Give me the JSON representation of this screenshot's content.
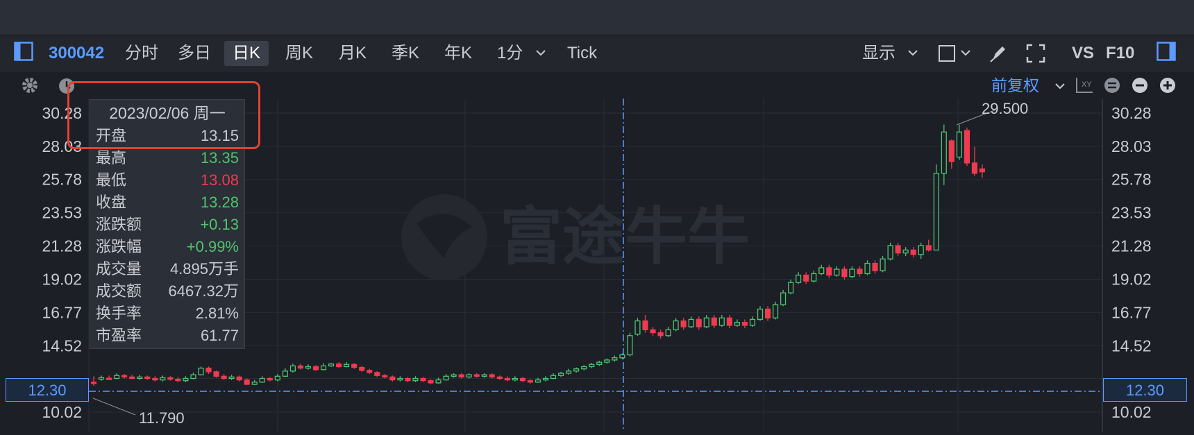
{
  "toolbar": {
    "code": "300042",
    "tabs": [
      "分时",
      "多日",
      "日K",
      "周K",
      "月K",
      "季K",
      "年K"
    ],
    "active_tab": "日K",
    "interval": "1分",
    "tick": "Tick",
    "display": "显示",
    "vs": "VS",
    "f10": "F10"
  },
  "subbar": {
    "adjust": "前复权"
  },
  "tooltip": {
    "date": "2023/02/06 周一",
    "rows": [
      {
        "label": "开盘",
        "value": "13.15",
        "color": "#c9ccd2"
      },
      {
        "label": "最高",
        "value": "13.35",
        "color": "#4fc46f"
      },
      {
        "label": "最低",
        "value": "13.08",
        "color": "#ef3b50"
      },
      {
        "label": "收盘",
        "value": "13.28",
        "color": "#4fc46f"
      },
      {
        "label": "涨跌额",
        "value": "+0.13",
        "color": "#4fc46f"
      },
      {
        "label": "涨跌幅",
        "value": "+0.99%",
        "color": "#4fc46f"
      },
      {
        "label": "成交量",
        "value": "4.895万手",
        "color": "#c9ccd2"
      },
      {
        "label": "成交额",
        "value": "6467.32万",
        "color": "#c9ccd2"
      },
      {
        "label": "换手率",
        "value": "2.81%",
        "color": "#c9ccd2"
      },
      {
        "label": "市盈率",
        "value": "61.77",
        "color": "#c9ccd2"
      }
    ]
  },
  "watermark": "富途牛牛",
  "colors": {
    "up": "#4fc46f",
    "down": "#ef3b50",
    "accent": "#5b9bff",
    "highlight": "#e0432e"
  },
  "chart_data": {
    "type": "candlestick",
    "y_ticks": [
      "30.28",
      "28.03",
      "25.78",
      "23.53",
      "21.28",
      "19.02",
      "16.77",
      "14.52",
      "12.30",
      "10.02"
    ],
    "ylim": [
      10.02,
      30.28
    ],
    "current_price": "12.30",
    "max_label": "29.500",
    "min_label": "11.790",
    "candles": [
      [
        12.05,
        12.0,
        12.45,
        11.79
      ],
      [
        12.25,
        12.35,
        12.5,
        12.15
      ],
      [
        12.32,
        12.3,
        12.5,
        12.2
      ],
      [
        12.3,
        12.5,
        12.65,
        12.25
      ],
      [
        12.5,
        12.4,
        12.6,
        12.3
      ],
      [
        12.4,
        12.3,
        12.55,
        12.25
      ],
      [
        12.3,
        12.4,
        12.55,
        12.2
      ],
      [
        12.4,
        12.3,
        12.5,
        12.2
      ],
      [
        12.3,
        12.2,
        12.45,
        12.1
      ],
      [
        12.2,
        12.35,
        12.5,
        12.1
      ],
      [
        12.35,
        12.25,
        12.45,
        12.15
      ],
      [
        12.25,
        12.15,
        12.4,
        12.05
      ],
      [
        12.15,
        12.3,
        12.45,
        12.05
      ],
      [
        12.3,
        12.55,
        12.7,
        12.25
      ],
      [
        12.55,
        13.0,
        13.1,
        12.5
      ],
      [
        13.0,
        12.75,
        13.1,
        12.6
      ],
      [
        12.75,
        12.45,
        12.85,
        12.35
      ],
      [
        12.45,
        12.3,
        12.6,
        12.2
      ],
      [
        12.3,
        12.4,
        12.55,
        12.2
      ],
      [
        12.4,
        12.2,
        12.5,
        12.1
      ],
      [
        12.2,
        11.9,
        12.3,
        11.85
      ],
      [
        11.9,
        12.05,
        12.2,
        11.85
      ],
      [
        12.05,
        12.3,
        12.45,
        12.0
      ],
      [
        12.3,
        12.2,
        12.4,
        12.1
      ],
      [
        12.2,
        12.45,
        12.6,
        12.1
      ],
      [
        12.45,
        12.8,
        13.0,
        12.4
      ],
      [
        12.8,
        13.15,
        13.3,
        12.7
      ],
      [
        13.15,
        13.0,
        13.3,
        12.9
      ],
      [
        13.0,
        13.1,
        13.25,
        12.9
      ],
      [
        13.1,
        12.9,
        13.2,
        12.8
      ],
      [
        12.9,
        13.15,
        13.35,
        12.85
      ],
      [
        13.15,
        13.28,
        13.35,
        13.08
      ],
      [
        13.28,
        13.1,
        13.4,
        13.0
      ],
      [
        13.1,
        13.25,
        13.4,
        13.05
      ],
      [
        13.25,
        13.05,
        13.35,
        12.95
      ],
      [
        13.05,
        12.85,
        13.15,
        12.75
      ],
      [
        12.85,
        12.7,
        12.95,
        12.6
      ],
      [
        12.7,
        12.5,
        12.8,
        12.4
      ],
      [
        12.5,
        12.4,
        12.6,
        12.3
      ],
      [
        12.4,
        12.2,
        12.5,
        12.1
      ],
      [
        12.2,
        12.3,
        12.45,
        12.1
      ],
      [
        12.3,
        12.15,
        12.4,
        12.05
      ],
      [
        12.15,
        12.3,
        12.45,
        12.05
      ],
      [
        12.3,
        12.15,
        12.4,
        12.05
      ],
      [
        12.15,
        12.0,
        12.25,
        11.9
      ],
      [
        12.0,
        12.2,
        12.35,
        11.95
      ],
      [
        12.2,
        12.45,
        12.6,
        12.15
      ],
      [
        12.45,
        12.55,
        12.65,
        12.35
      ],
      [
        12.55,
        12.4,
        12.65,
        12.3
      ],
      [
        12.4,
        12.55,
        12.65,
        12.3
      ],
      [
        12.55,
        12.45,
        12.65,
        12.35
      ],
      [
        12.45,
        12.55,
        12.65,
        12.35
      ],
      [
        12.55,
        12.4,
        12.65,
        12.3
      ],
      [
        12.4,
        12.3,
        12.5,
        12.2
      ],
      [
        12.3,
        12.2,
        12.45,
        12.1
      ],
      [
        12.2,
        12.3,
        12.45,
        12.1
      ],
      [
        12.3,
        12.15,
        12.4,
        12.05
      ],
      [
        12.15,
        12.05,
        12.25,
        11.95
      ],
      [
        12.05,
        12.2,
        12.35,
        12.0
      ],
      [
        12.2,
        12.3,
        12.45,
        12.1
      ],
      [
        12.3,
        12.5,
        12.65,
        12.25
      ],
      [
        12.5,
        12.65,
        12.75,
        12.4
      ],
      [
        12.65,
        12.8,
        12.95,
        12.55
      ],
      [
        12.8,
        12.95,
        13.05,
        12.7
      ],
      [
        12.95,
        13.1,
        13.2,
        12.85
      ],
      [
        13.1,
        13.25,
        13.35,
        13.0
      ],
      [
        13.25,
        13.4,
        13.5,
        13.15
      ],
      [
        13.4,
        13.55,
        13.65,
        13.3
      ],
      [
        13.55,
        13.7,
        13.85,
        13.45
      ],
      [
        13.7,
        13.9,
        14.0,
        13.6
      ],
      [
        13.9,
        15.2,
        15.4,
        13.8
      ],
      [
        15.3,
        16.2,
        16.4,
        15.2
      ],
      [
        16.2,
        15.6,
        16.6,
        15.4
      ],
      [
        15.6,
        15.4,
        15.8,
        15.2
      ],
      [
        15.4,
        15.2,
        15.6,
        15.0
      ],
      [
        15.2,
        15.6,
        15.8,
        15.1
      ],
      [
        15.6,
        16.2,
        16.4,
        15.5
      ],
      [
        16.2,
        15.8,
        16.4,
        15.6
      ],
      [
        15.8,
        16.3,
        16.5,
        15.7
      ],
      [
        16.3,
        15.8,
        16.5,
        15.6
      ],
      [
        15.8,
        16.4,
        16.6,
        15.7
      ],
      [
        16.4,
        15.9,
        16.6,
        15.7
      ],
      [
        15.9,
        16.4,
        16.6,
        15.8
      ],
      [
        16.4,
        15.9,
        16.6,
        15.7
      ],
      [
        15.9,
        16.1,
        16.3,
        15.8
      ],
      [
        16.1,
        15.9,
        16.3,
        15.7
      ],
      [
        15.9,
        16.3,
        16.5,
        15.8
      ],
      [
        16.3,
        17.0,
        17.2,
        16.2
      ],
      [
        17.0,
        16.4,
        17.2,
        16.2
      ],
      [
        16.4,
        17.3,
        17.5,
        16.3
      ],
      [
        17.3,
        18.1,
        18.3,
        17.2
      ],
      [
        18.1,
        18.8,
        19.0,
        18.0
      ],
      [
        18.8,
        19.3,
        19.5,
        18.7
      ],
      [
        19.3,
        18.9,
        19.5,
        18.7
      ],
      [
        18.9,
        19.4,
        19.6,
        18.8
      ],
      [
        19.4,
        19.8,
        20.0,
        19.3
      ],
      [
        19.8,
        19.3,
        20.0,
        19.1
      ],
      [
        19.3,
        19.7,
        19.9,
        19.2
      ],
      [
        19.7,
        19.2,
        19.9,
        19.0
      ],
      [
        19.2,
        19.7,
        19.9,
        19.1
      ],
      [
        19.7,
        19.4,
        19.9,
        19.2
      ],
      [
        19.4,
        20.1,
        20.3,
        19.3
      ],
      [
        20.1,
        19.6,
        20.3,
        19.4
      ],
      [
        19.6,
        20.4,
        20.6,
        19.5
      ],
      [
        20.4,
        21.3,
        21.5,
        20.3
      ],
      [
        21.3,
        20.8,
        21.5,
        20.6
      ],
      [
        20.8,
        21.0,
        21.2,
        20.6
      ],
      [
        21.0,
        20.7,
        21.2,
        20.5
      ],
      [
        20.7,
        21.3,
        21.5,
        20.4
      ],
      [
        21.3,
        21.0,
        21.7,
        20.9
      ],
      [
        21.0,
        26.2,
        26.8,
        21.0
      ],
      [
        26.2,
        29.0,
        29.5,
        25.4
      ],
      [
        28.4,
        27.0,
        28.5,
        26.5
      ],
      [
        27.3,
        29.0,
        29.5,
        27.1
      ],
      [
        29.1,
        26.9,
        29.3,
        26.7
      ],
      [
        26.9,
        26.2,
        28.0,
        26.0
      ],
      [
        26.5,
        26.3,
        26.8,
        25.9
      ]
    ]
  }
}
